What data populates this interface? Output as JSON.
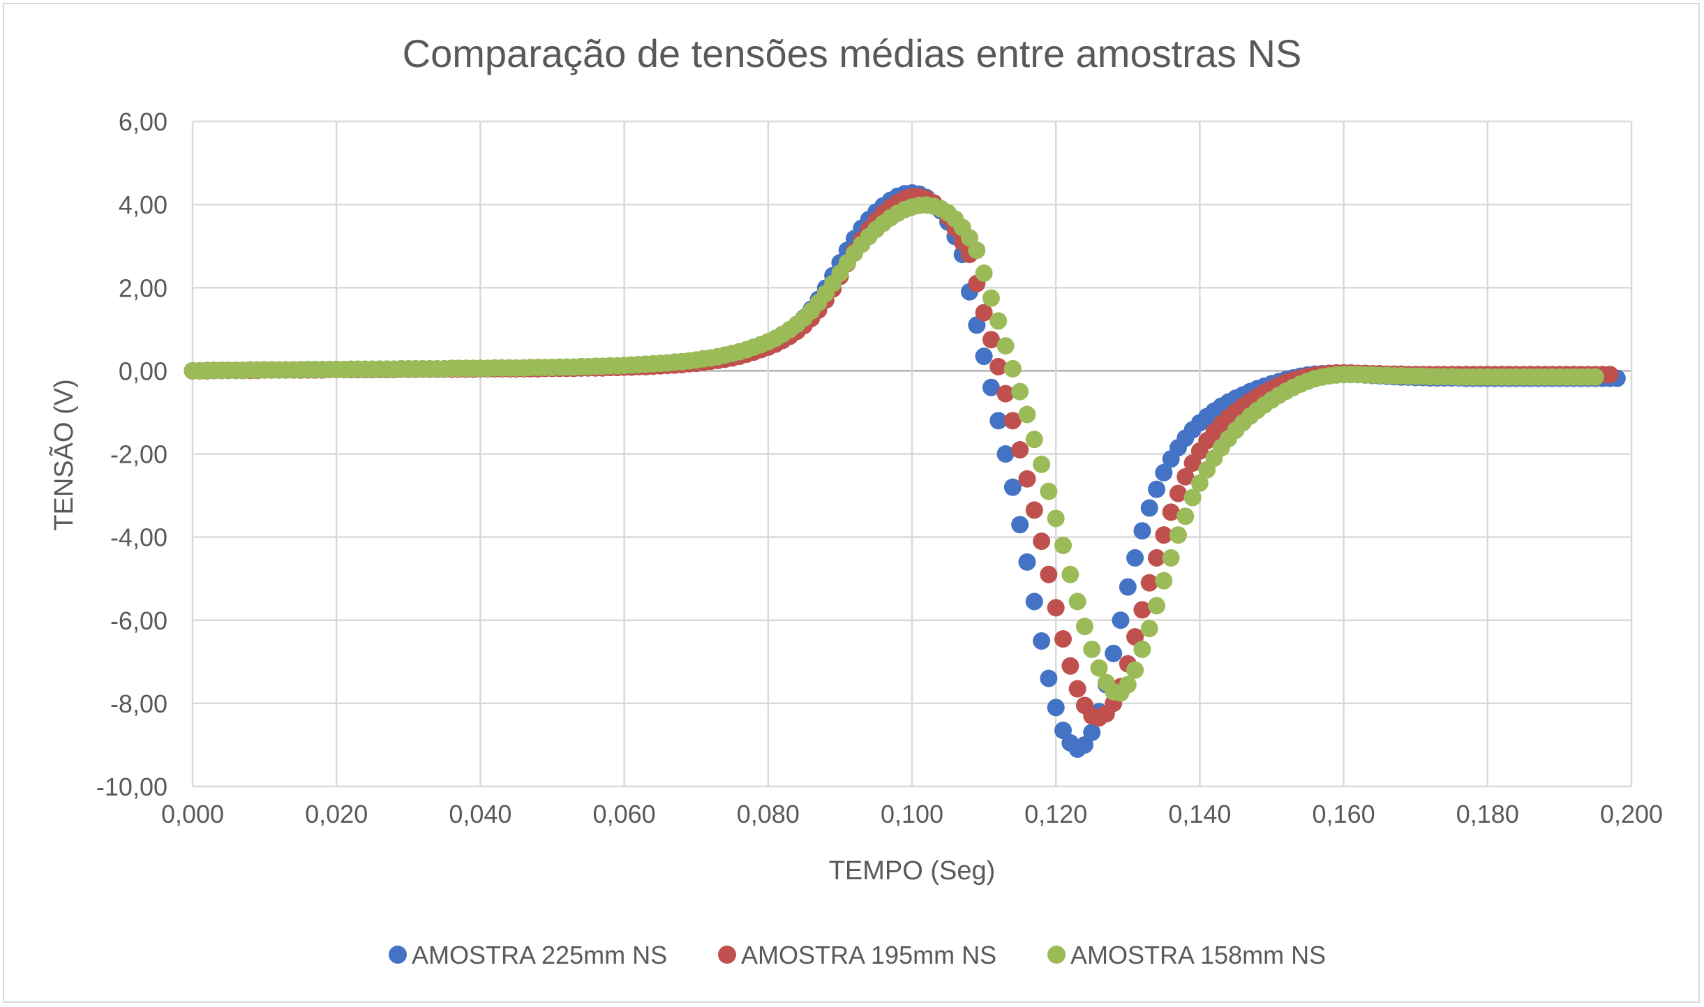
{
  "chart_data": {
    "type": "scatter",
    "title": "Comparação de tensões médias entre amostras NS",
    "xlabel": "TEMPO (Seg)",
    "ylabel": "TENSÃO (V)",
    "xlim": [
      0,
      0.2
    ],
    "ylim": [
      -10,
      6
    ],
    "x_ticks": [
      "0,000",
      "0,020",
      "0,040",
      "0,060",
      "0,080",
      "0,100",
      "0,120",
      "0,140",
      "0,160",
      "0,180",
      "0,200"
    ],
    "y_ticks": [
      "6,00",
      "4,00",
      "2,00",
      "0,00",
      "-2,00",
      "-4,00",
      "-6,00",
      "-8,00",
      "-10,00"
    ],
    "grid": true,
    "legend_position": "bottom",
    "series": [
      {
        "name": "AMOSTRA 225mm NS",
        "color": "#4472c4",
        "x_step": 0.001,
        "x_start": 0,
        "values": [
          0.0,
          0.0,
          0.01,
          0.01,
          0.01,
          0.01,
          0.01,
          0.01,
          0.02,
          0.02,
          0.02,
          0.02,
          0.02,
          0.02,
          0.02,
          0.02,
          0.03,
          0.03,
          0.03,
          0.03,
          0.03,
          0.03,
          0.03,
          0.03,
          0.03,
          0.03,
          0.04,
          0.04,
          0.04,
          0.04,
          0.04,
          0.04,
          0.04,
          0.04,
          0.04,
          0.04,
          0.05,
          0.05,
          0.05,
          0.05,
          0.05,
          0.05,
          0.05,
          0.05,
          0.05,
          0.05,
          0.06,
          0.06,
          0.06,
          0.06,
          0.06,
          0.07,
          0.07,
          0.07,
          0.07,
          0.08,
          0.08,
          0.08,
          0.09,
          0.09,
          0.1,
          0.1,
          0.11,
          0.12,
          0.13,
          0.14,
          0.15,
          0.16,
          0.18,
          0.2,
          0.22,
          0.24,
          0.27,
          0.3,
          0.33,
          0.37,
          0.42,
          0.47,
          0.53,
          0.59,
          0.66,
          0.75,
          0.85,
          0.97,
          1.11,
          1.28,
          1.48,
          1.72,
          1.99,
          2.29,
          2.6,
          2.9,
          3.18,
          3.43,
          3.64,
          3.82,
          3.97,
          4.1,
          4.2,
          4.26,
          4.28,
          4.25,
          4.17,
          4.04,
          3.85,
          3.58,
          3.23,
          2.8,
          1.9,
          1.1,
          0.35,
          -0.4,
          -1.2,
          -2.0,
          -2.8,
          -3.7,
          -4.6,
          -5.55,
          -6.5,
          -7.4,
          -8.1,
          -8.65,
          -8.95,
          -9.1,
          -9.0,
          -8.7,
          -8.2,
          -7.55,
          -6.8,
          -6.0,
          -5.2,
          -4.5,
          -3.85,
          -3.3,
          -2.85,
          -2.45,
          -2.12,
          -1.85,
          -1.62,
          -1.42,
          -1.25,
          -1.1,
          -0.97,
          -0.85,
          -0.75,
          -0.66,
          -0.58,
          -0.5,
          -0.43,
          -0.37,
          -0.31,
          -0.26,
          -0.21,
          -0.17,
          -0.13,
          -0.1,
          -0.08,
          -0.07,
          -0.06,
          -0.06,
          -0.07,
          -0.08,
          -0.09,
          -0.1,
          -0.11,
          -0.12,
          -0.13,
          -0.14,
          -0.15,
          -0.15,
          -0.16,
          -0.16,
          -0.17,
          -0.17,
          -0.17,
          -0.17,
          -0.17,
          -0.18,
          -0.18,
          -0.18,
          -0.18,
          -0.18,
          -0.18,
          -0.18,
          -0.18,
          -0.18,
          -0.18,
          -0.18,
          -0.18,
          -0.18,
          -0.18,
          -0.18,
          -0.18,
          -0.18,
          -0.18,
          -0.18,
          -0.18,
          -0.18,
          -0.18
        ]
      },
      {
        "name": "AMOSTRA 195mm NS",
        "color": "#c0504d",
        "x_step": 0.001,
        "x_start": 0,
        "values": [
          0.0,
          0.0,
          0.0,
          0.01,
          0.01,
          0.01,
          0.01,
          0.01,
          0.01,
          0.01,
          0.02,
          0.02,
          0.02,
          0.02,
          0.02,
          0.02,
          0.02,
          0.02,
          0.02,
          0.03,
          0.03,
          0.03,
          0.03,
          0.03,
          0.03,
          0.03,
          0.03,
          0.03,
          0.03,
          0.04,
          0.04,
          0.04,
          0.04,
          0.04,
          0.04,
          0.04,
          0.04,
          0.04,
          0.04,
          0.04,
          0.05,
          0.05,
          0.05,
          0.05,
          0.05,
          0.05,
          0.05,
          0.05,
          0.05,
          0.06,
          0.06,
          0.06,
          0.06,
          0.06,
          0.07,
          0.07,
          0.07,
          0.07,
          0.08,
          0.08,
          0.09,
          0.09,
          0.1,
          0.1,
          0.11,
          0.12,
          0.13,
          0.14,
          0.15,
          0.17,
          0.18,
          0.2,
          0.23,
          0.25,
          0.28,
          0.31,
          0.35,
          0.4,
          0.45,
          0.51,
          0.57,
          0.64,
          0.73,
          0.83,
          0.95,
          1.09,
          1.26,
          1.46,
          1.7,
          1.97,
          2.27,
          2.58,
          2.88,
          3.15,
          3.4,
          3.61,
          3.79,
          3.93,
          4.05,
          4.14,
          4.19,
          4.19,
          4.14,
          4.04,
          3.9,
          3.7,
          3.43,
          3.1,
          2.8,
          2.1,
          1.4,
          0.75,
          0.1,
          -0.55,
          -1.2,
          -1.9,
          -2.6,
          -3.35,
          -4.1,
          -4.9,
          -5.7,
          -6.45,
          -7.1,
          -7.65,
          -8.05,
          -8.3,
          -8.35,
          -8.25,
          -8.0,
          -7.6,
          -7.05,
          -6.4,
          -5.75,
          -5.1,
          -4.5,
          -3.95,
          -3.4,
          -2.95,
          -2.55,
          -2.22,
          -1.93,
          -1.68,
          -1.47,
          -1.28,
          -1.12,
          -0.98,
          -0.85,
          -0.73,
          -0.62,
          -0.52,
          -0.43,
          -0.35,
          -0.28,
          -0.22,
          -0.17,
          -0.13,
          -0.1,
          -0.08,
          -0.06,
          -0.05,
          -0.05,
          -0.05,
          -0.06,
          -0.06,
          -0.07,
          -0.07,
          -0.08,
          -0.08,
          -0.08,
          -0.09,
          -0.09,
          -0.09,
          -0.09,
          -0.09,
          -0.09,
          -0.09,
          -0.09,
          -0.09,
          -0.09,
          -0.09,
          -0.09,
          -0.09,
          -0.09,
          -0.09,
          -0.09,
          -0.09,
          -0.09,
          -0.09,
          -0.09,
          -0.09,
          -0.09,
          -0.09,
          -0.09,
          -0.09,
          -0.09,
          -0.09,
          -0.09,
          -0.09
        ]
      },
      {
        "name": "AMOSTRA 158mm NS",
        "color": "#9bbb59",
        "x_step": 0.001,
        "x_start": 0,
        "values": [
          0.0,
          0.0,
          0.01,
          0.01,
          0.01,
          0.01,
          0.01,
          0.01,
          0.02,
          0.02,
          0.02,
          0.02,
          0.02,
          0.02,
          0.02,
          0.03,
          0.03,
          0.03,
          0.03,
          0.03,
          0.03,
          0.03,
          0.04,
          0.04,
          0.04,
          0.04,
          0.04,
          0.04,
          0.04,
          0.05,
          0.05,
          0.05,
          0.05,
          0.05,
          0.05,
          0.05,
          0.06,
          0.06,
          0.06,
          0.06,
          0.06,
          0.06,
          0.07,
          0.07,
          0.07,
          0.07,
          0.07,
          0.08,
          0.08,
          0.08,
          0.08,
          0.09,
          0.09,
          0.09,
          0.1,
          0.1,
          0.11,
          0.11,
          0.12,
          0.12,
          0.13,
          0.14,
          0.15,
          0.16,
          0.17,
          0.18,
          0.19,
          0.21,
          0.22,
          0.24,
          0.26,
          0.29,
          0.31,
          0.34,
          0.38,
          0.42,
          0.46,
          0.51,
          0.57,
          0.63,
          0.7,
          0.78,
          0.88,
          0.99,
          1.12,
          1.27,
          1.44,
          1.64,
          1.86,
          2.1,
          2.35,
          2.6,
          2.83,
          3.04,
          3.23,
          3.4,
          3.55,
          3.68,
          3.79,
          3.88,
          3.94,
          3.98,
          3.99,
          3.96,
          3.9,
          3.8,
          3.65,
          3.45,
          3.2,
          2.9,
          2.35,
          1.75,
          1.2,
          0.6,
          0.05,
          -0.5,
          -1.05,
          -1.65,
          -2.25,
          -2.9,
          -3.55,
          -4.2,
          -4.9,
          -5.55,
          -6.15,
          -6.7,
          -7.15,
          -7.5,
          -7.72,
          -7.75,
          -7.55,
          -7.2,
          -6.7,
          -6.2,
          -5.65,
          -5.05,
          -4.5,
          -3.95,
          -3.5,
          -3.05,
          -2.7,
          -2.38,
          -2.1,
          -1.85,
          -1.63,
          -1.43,
          -1.25,
          -1.09,
          -0.95,
          -0.82,
          -0.7,
          -0.59,
          -0.49,
          -0.4,
          -0.32,
          -0.25,
          -0.19,
          -0.15,
          -0.12,
          -0.1,
          -0.09,
          -0.09,
          -0.09,
          -0.1,
          -0.1,
          -0.11,
          -0.11,
          -0.12,
          -0.12,
          -0.13,
          -0.13,
          -0.13,
          -0.14,
          -0.14,
          -0.14,
          -0.14,
          -0.15,
          -0.15,
          -0.15,
          -0.15,
          -0.15,
          -0.15,
          -0.15,
          -0.15,
          -0.15,
          -0.15,
          -0.15,
          -0.15,
          -0.15,
          -0.15,
          -0.15,
          -0.15,
          -0.15,
          -0.15,
          -0.15,
          -0.15
        ]
      }
    ]
  }
}
